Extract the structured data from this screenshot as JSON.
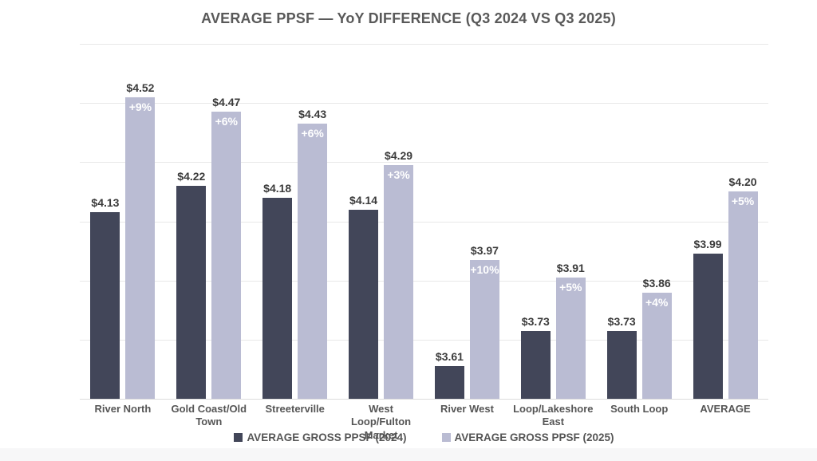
{
  "title": "AVERAGE PPSF — YoY DIFFERENCE (Q3 2024 VS Q3 2025)",
  "colors": {
    "bar_2024": "#424659",
    "bar_2025": "#babcd3",
    "title_text": "#595959",
    "axis_text": "#555555",
    "value_text": "#3b3b3b",
    "pct_text": "#ffffff",
    "gridline": "#e8e8e8"
  },
  "chart_data": {
    "type": "bar",
    "title": "AVERAGE PPSF — YoY DIFFERENCE (Q3 2024 VS Q3 2025)",
    "categories": [
      "River North",
      "Gold Coast/Old Town",
      "Streeterville",
      "West Loop/Fulton Market",
      "River West",
      "Loop/Lakeshore East",
      "South Loop",
      "AVERAGE"
    ],
    "series": [
      {
        "name": "AVERAGE GROSS PPSF (2024)",
        "color": "#424659",
        "values": [
          4.13,
          4.22,
          4.18,
          4.14,
          3.61,
          3.73,
          3.73,
          3.99
        ],
        "value_labels": [
          "$4.13",
          "$4.22",
          "$4.18",
          "$4.14",
          "$3.61",
          "$3.73",
          "$3.73",
          "$3.99"
        ]
      },
      {
        "name": "AVERAGE GROSS PPSF (2025)",
        "color": "#babcd3",
        "values": [
          4.52,
          4.47,
          4.43,
          4.29,
          3.97,
          3.91,
          3.86,
          4.2
        ],
        "value_labels": [
          "$4.52",
          "$4.47",
          "$4.43",
          "$4.29",
          "$3.97",
          "$3.91",
          "$3.86",
          "$4.20"
        ],
        "annotations": [
          "+9%",
          "+6%",
          "+6%",
          "+3%",
          "+10%",
          "+5%",
          "+4%",
          "+5%"
        ]
      }
    ],
    "ylim": [
      3.5,
      4.7
    ],
    "ytick_step": 0.2,
    "ytick_labels": [
      "$3.50",
      "$3.70",
      "$3.90",
      "$4.10",
      "$4.30",
      "$4.50",
      "$4.70"
    ],
    "grid": true,
    "legend_position": "bottom"
  },
  "legend": {
    "items": [
      {
        "label": "AVERAGE GROSS PPSF (2024)",
        "color": "#424659"
      },
      {
        "label": "AVERAGE GROSS PPSF (2025)",
        "color": "#babcd3"
      }
    ]
  }
}
